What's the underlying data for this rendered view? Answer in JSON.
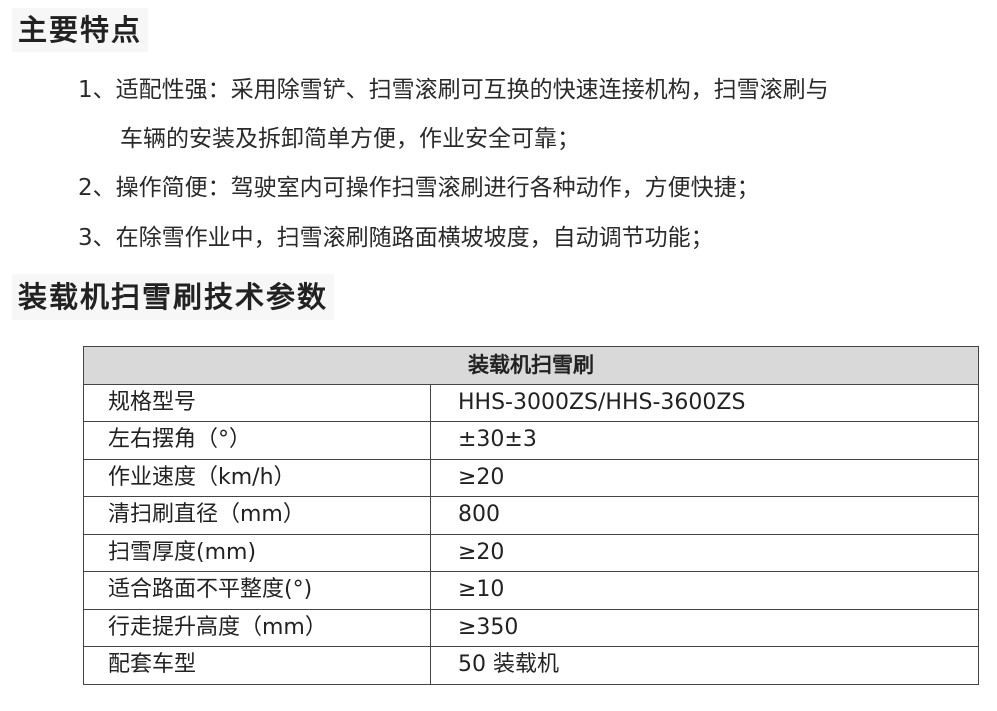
{
  "features": {
    "title": "主要特点",
    "items": [
      "1、适配性强：采用除雪铲、扫雪滚刷可互换的快速连接机构，扫雪滚刷与",
      "车辆的安装及拆卸简单方便，作业安全可靠；",
      "2、操作简便：驾驶室内可操作扫雪滚刷进行各种动作，方便快捷；",
      "3、在除雪作业中，扫雪滚刷随路面横坡坡度，自动调节功能；"
    ]
  },
  "specs": {
    "title": "装载机扫雪刷技术参数",
    "table_header": "装载机扫雪刷",
    "rows": [
      {
        "label": "规格型号",
        "value": "HHS-3000ZS/HHS-3600ZS"
      },
      {
        "label": "左右摆角（°）",
        "value": "±30±3"
      },
      {
        "label": "作业速度（km/h）",
        "value": "≥20"
      },
      {
        "label": "清扫刷直径（mm）",
        "value": "800"
      },
      {
        "label": "扫雪厚度(mm)",
        "value": "≥20"
      },
      {
        "label": "适合路面不平整度(°)",
        "value": "≥10"
      },
      {
        "label": "行走提升高度（mm）",
        "value": "≥350"
      },
      {
        "label": "配套车型",
        "value": "50 装载机"
      }
    ]
  }
}
